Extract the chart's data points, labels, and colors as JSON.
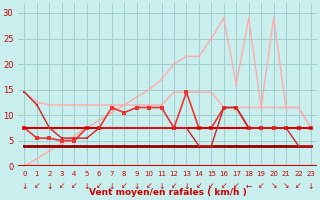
{
  "xlabel": "Vent moyen/en rafales ( km/h )",
  "background_color": "#c8eeee",
  "grid_color": "#a0cccc",
  "ylim": [
    0,
    32
  ],
  "yticks": [
    0,
    5,
    10,
    15,
    20,
    25,
    30
  ],
  "x_labels": [
    "0",
    "1",
    "2",
    "3",
    "4",
    "5",
    "6",
    "7",
    "8",
    "9",
    "10",
    "11",
    "12",
    "13",
    "14",
    "15",
    "16",
    "17",
    "18",
    "19",
    "20",
    "21",
    "22",
    "23"
  ],
  "series": [
    {
      "name": "rafales_max_light",
      "y": [
        0,
        1.5,
        3,
        4.5,
        6,
        7.5,
        9,
        10.5,
        12,
        13.5,
        15,
        17,
        20,
        21.5,
        21.5,
        25,
        29,
        16,
        29,
        11.5,
        29,
        11.5,
        11.5,
        7.5
      ],
      "color": "#ffaaaa",
      "lw": 1.0,
      "marker": "s",
      "ms": 2.0
    },
    {
      "name": "moy_upper_pink",
      "y": [
        14.5,
        12.5,
        12.0,
        12.0,
        12.0,
        12.0,
        12.0,
        12.0,
        12.0,
        12.0,
        12.0,
        12.0,
        14.5,
        14.5,
        14.5,
        14.5,
        11.5,
        11.5,
        11.5,
        11.5,
        11.5,
        11.5,
        11.5,
        7.5
      ],
      "color": "#ffaaaa",
      "lw": 1.0,
      "marker": "s",
      "ms": 2.0
    },
    {
      "name": "medium_red_wiggly",
      "y": [
        7.5,
        5.5,
        5.5,
        5.0,
        5.0,
        7.5,
        7.5,
        11.5,
        10.5,
        11.5,
        11.5,
        11.5,
        7.5,
        14.5,
        7.5,
        7.5,
        11.5,
        11.5,
        7.5,
        7.5,
        7.5,
        7.5,
        7.5,
        7.5
      ],
      "color": "#ee3333",
      "lw": 1.2,
      "marker": "s",
      "ms": 2.2
    },
    {
      "name": "dark_red_flat_upper",
      "y": [
        7.5,
        7.5,
        7.5,
        7.5,
        7.5,
        7.5,
        7.5,
        7.5,
        7.5,
        7.5,
        7.5,
        7.5,
        7.5,
        7.5,
        7.5,
        7.5,
        7.5,
        7.5,
        7.5,
        7.5,
        7.5,
        7.5,
        7.5,
        7.5
      ],
      "color": "#cc0000",
      "lw": 1.5,
      "marker": "s",
      "ms": 2.0
    },
    {
      "name": "dark_red_flat_lower",
      "y": [
        4.0,
        4.0,
        4.0,
        4.0,
        4.0,
        4.0,
        4.0,
        4.0,
        4.0,
        4.0,
        4.0,
        4.0,
        4.0,
        4.0,
        4.0,
        4.0,
        4.0,
        4.0,
        4.0,
        4.0,
        4.0,
        4.0,
        4.0,
        4.0
      ],
      "color": "#990000",
      "lw": 2.0,
      "marker": "s",
      "ms": 2.0
    },
    {
      "name": "start_high_drop",
      "y": [
        14.5,
        12.0,
        7.5,
        5.5,
        5.5,
        5.5,
        7.5,
        7.5,
        7.5,
        7.5,
        7.5,
        7.5,
        7.5,
        7.5,
        4.0,
        4.0,
        11.5,
        11.5,
        7.5,
        7.5,
        7.5,
        7.5,
        4.0,
        4.0
      ],
      "color": "#cc2222",
      "lw": 1.0,
      "marker": "s",
      "ms": 2.0
    }
  ],
  "wind_arrows": [
    "↓",
    "↙",
    "↓",
    "↙",
    "↙",
    "↓",
    "↙",
    "↓",
    "↙",
    "↓",
    "↙",
    "↓",
    "↙",
    "↓",
    "↙",
    "↙",
    "↙",
    "↙",
    "←",
    "↙",
    "↘",
    "↘",
    "↙",
    "↓"
  ]
}
